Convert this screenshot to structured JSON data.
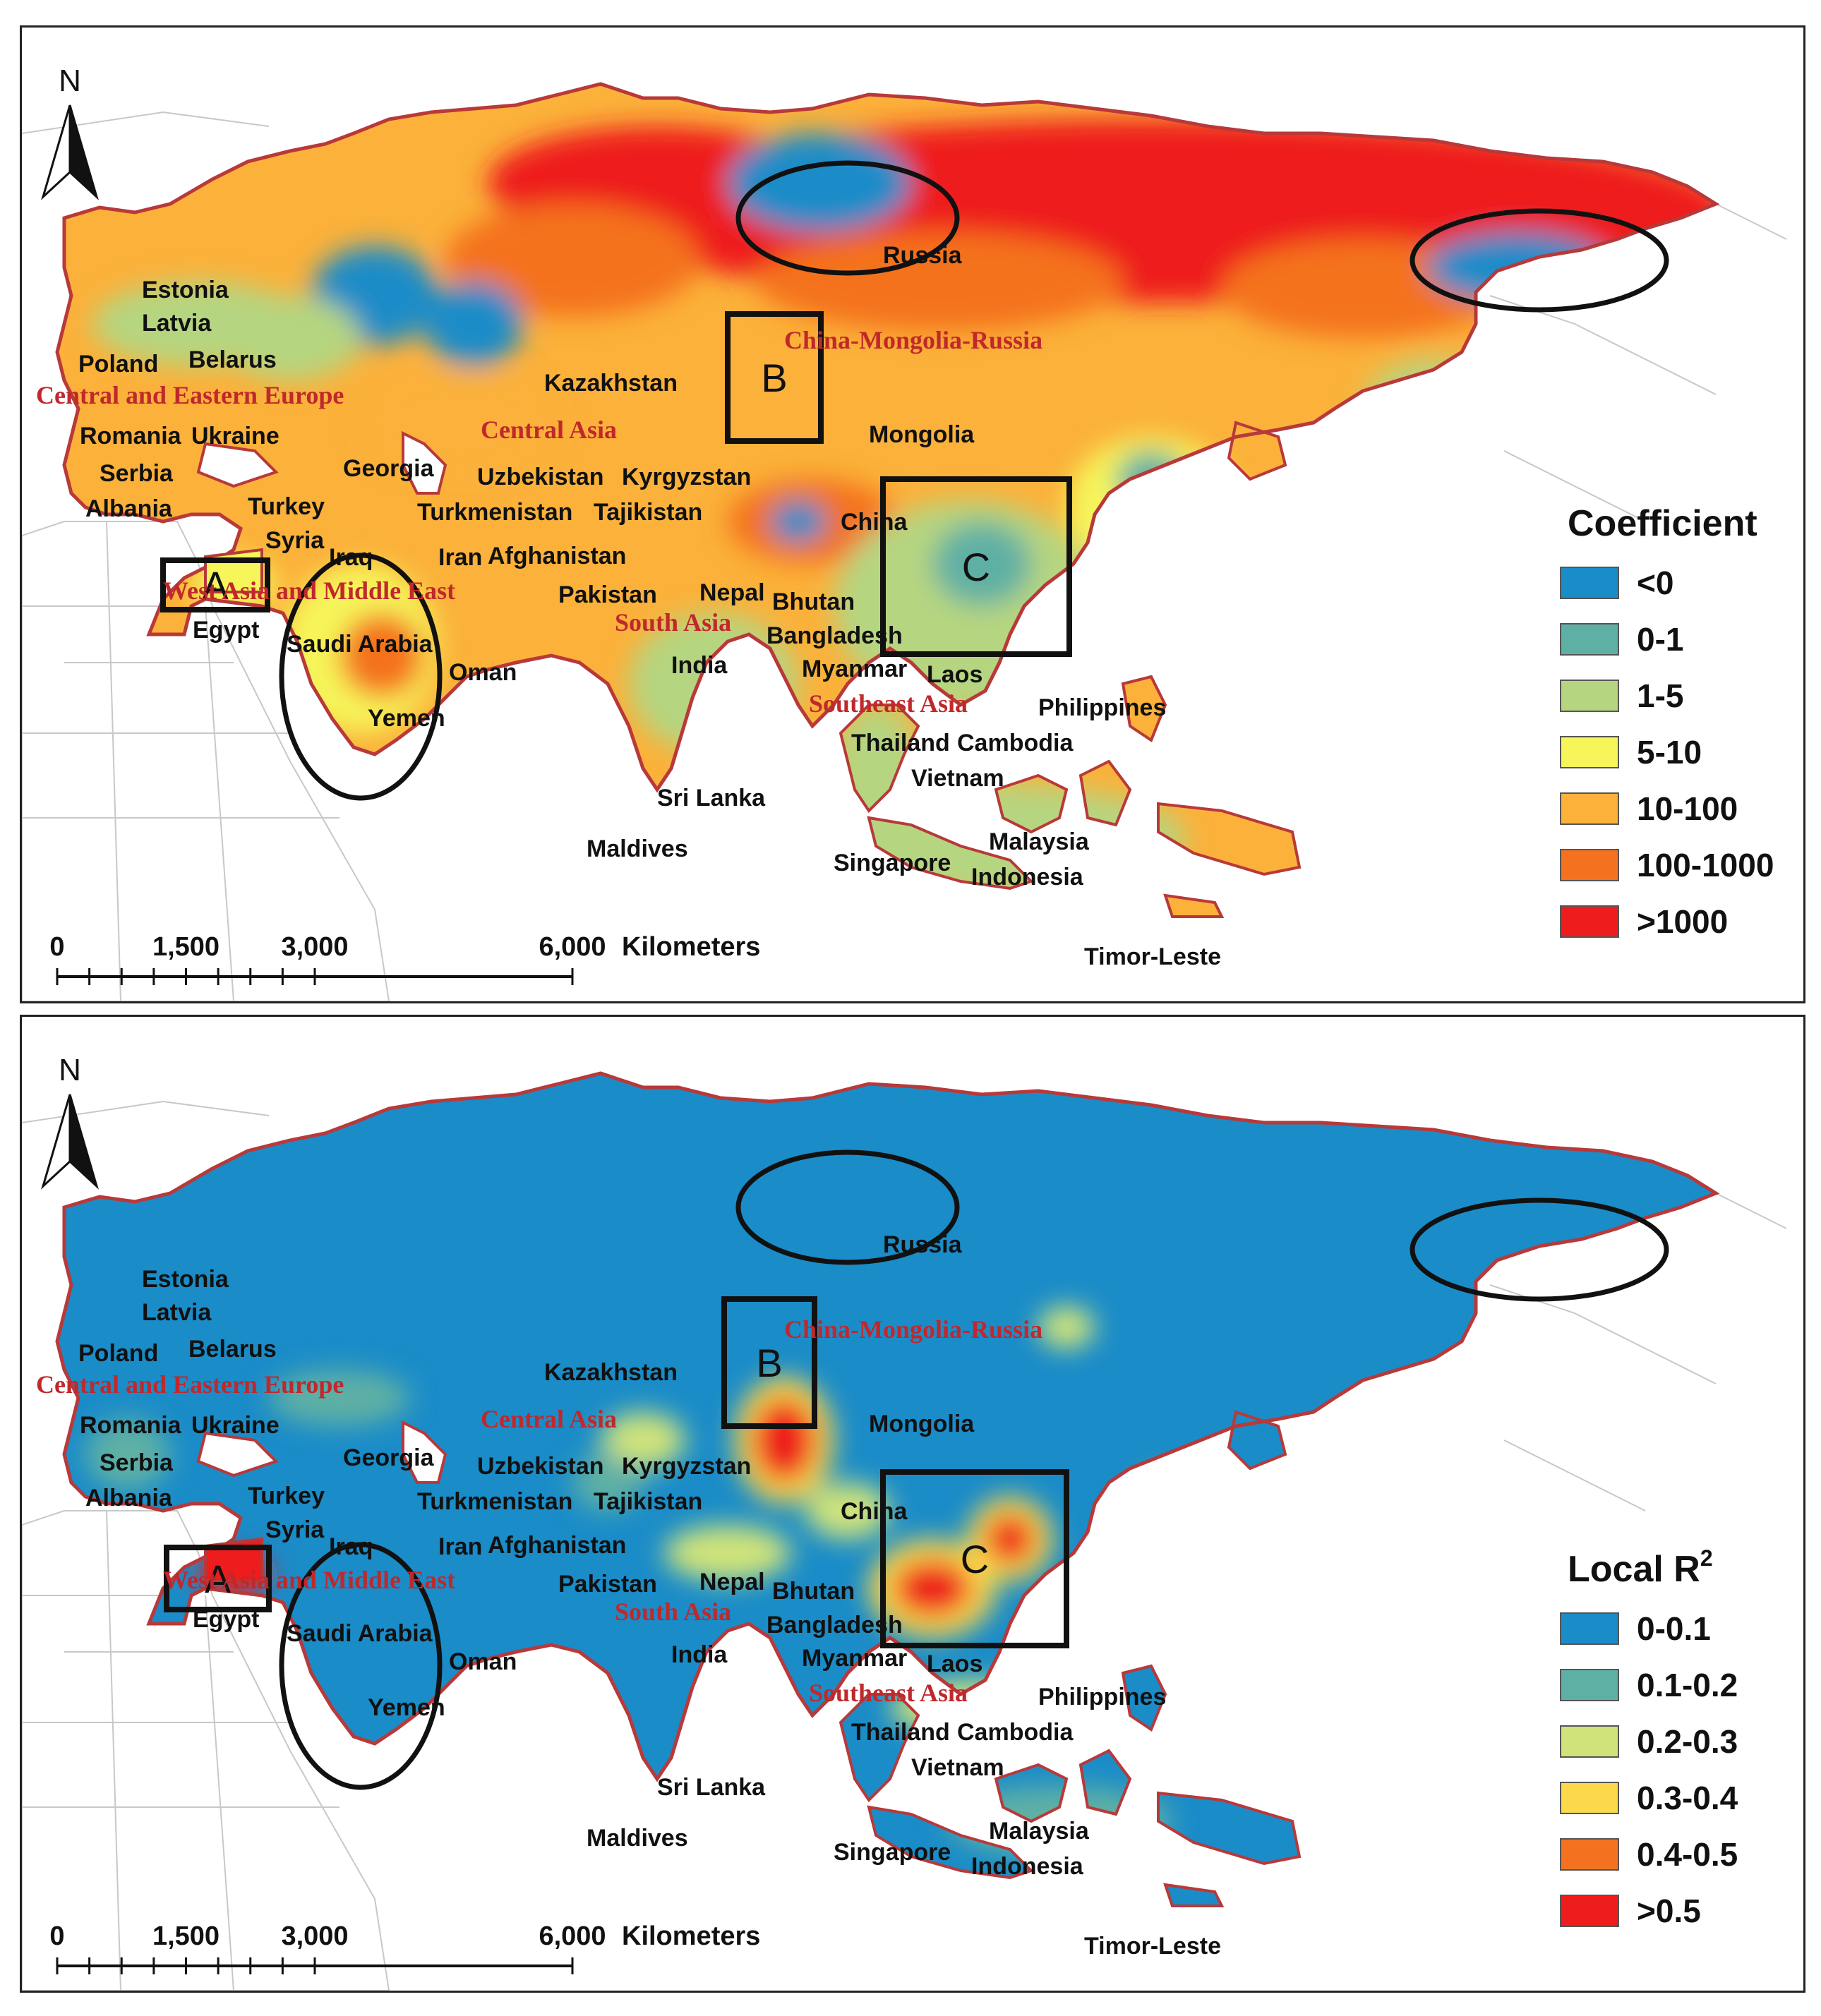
{
  "panels": [
    {
      "id": "coefficient",
      "legend": {
        "title": "Coefficient",
        "superscript": "",
        "classes": [
          {
            "label": "<0",
            "color": "#1a8cc8"
          },
          {
            "label": "0-1",
            "color": "#5fb0a4"
          },
          {
            "label": "1-5",
            "color": "#b6d580"
          },
          {
            "label": "5-10",
            "color": "#f6f55a"
          },
          {
            "label": "10-100",
            "color": "#fbb13a"
          },
          {
            "label": "100-1000",
            "color": "#f4721f"
          },
          {
            "label": ">1000",
            "color": "#ee1c1c"
          }
        ]
      },
      "base_color": "#fbb13a"
    },
    {
      "id": "local-r2",
      "legend": {
        "title": "Local R",
        "superscript": "2",
        "classes": [
          {
            "label": "0-0.1",
            "color": "#1a8cc8"
          },
          {
            "label": "0.1-0.2",
            "color": "#5fb0a4"
          },
          {
            "label": "0.2-0.3",
            "color": "#cfe37a"
          },
          {
            "label": "0.3-0.4",
            "color": "#fbd94a"
          },
          {
            "label": "0.4-0.5",
            "color": "#f4721f"
          },
          {
            "label": ">0.5",
            "color": "#ee1c1c"
          }
        ]
      },
      "base_color": "#1a8cc8"
    }
  ],
  "north_label": "N",
  "scale_bar": {
    "ticks": [
      "0",
      "1,500",
      "3,000",
      "6,000"
    ],
    "unit": "Kilometers"
  },
  "box_labels": [
    "A",
    "B",
    "C"
  ],
  "regions": [
    "Central and Eastern Europe",
    "Central Asia",
    "China-Mongolia-Russia",
    "West Asia and Middle East",
    "South Asia",
    "Southeast Asia"
  ],
  "countries": [
    "Russia",
    "Estonia",
    "Latvia",
    "Belarus",
    "Poland",
    "Romania",
    "Ukraine",
    "Serbia",
    "Albania",
    "Georgia",
    "Turkey",
    "Syria",
    "Iraq",
    "Iran",
    "Kazakhstan",
    "Uzbekistan",
    "Kyrgyzstan",
    "Turkmenistan",
    "Tajikistan",
    "Afghanistan",
    "Pakistan",
    "Mongolia",
    "China",
    "Nepal",
    "Bhutan",
    "Bangladesh",
    "India",
    "Egypt",
    "Saudi Arabia",
    "Oman",
    "Yemen",
    "Myanmar",
    "Laos",
    "Philippines",
    "Thailand",
    "Cambodia",
    "Vietnam",
    "Sri Lanka",
    "Maldives",
    "Singapore",
    "Malaysia",
    "Indonesia",
    "Timor-Leste"
  ],
  "colors": {
    "outline": "#b8393a",
    "graticule": "#c8c8c8",
    "ellipse": "#111111",
    "box": "#111111"
  }
}
